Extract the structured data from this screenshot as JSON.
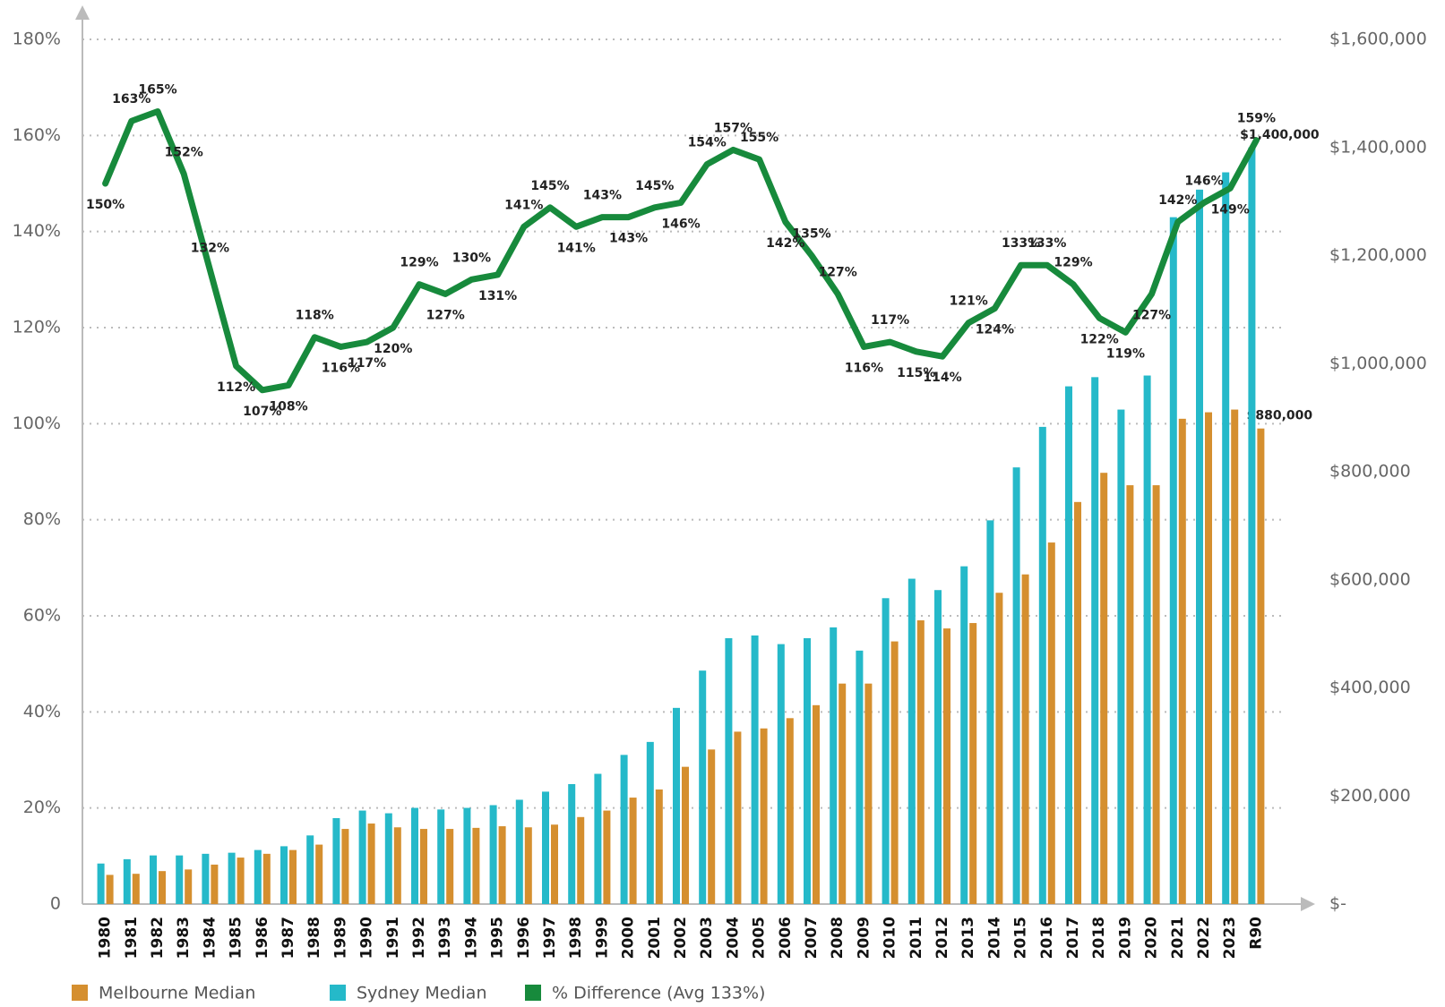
{
  "chart_data": {
    "type": "bar",
    "categories": [
      "1980",
      "1981",
      "1982",
      "1983",
      "1984",
      "1985",
      "1986",
      "1987",
      "1988",
      "1989",
      "1990",
      "1991",
      "1992",
      "1993",
      "1994",
      "1995",
      "1996",
      "1997",
      "1998",
      "1999",
      "2000",
      "2001",
      "2002",
      "2003",
      "2004",
      "2005",
      "2006",
      "2007",
      "2008",
      "2009",
      "2010",
      "2011",
      "2012",
      "2013",
      "2014",
      "2015",
      "2016",
      "2017",
      "2018",
      "2019",
      "2020",
      "2021",
      "2022",
      "2023",
      "R90"
    ],
    "series": [
      {
        "name": "Melbourne Median",
        "type": "bar",
        "axis": "y2",
        "color": "#d58f2f",
        "values": [
          54000,
          56000,
          61000,
          64000,
          73000,
          86000,
          93000,
          100000,
          110000,
          139000,
          149000,
          142000,
          139000,
          139000,
          141000,
          144000,
          142000,
          147000,
          161000,
          173000,
          197000,
          212000,
          254000,
          286000,
          319000,
          325000,
          344000,
          368000,
          408000,
          408000,
          486000,
          525000,
          510000,
          520000,
          576000,
          610000,
          669000,
          744000,
          798000,
          775000,
          775000,
          898000,
          910000,
          915000,
          880000
        ],
        "value_labels": [
          null,
          null,
          null,
          null,
          null,
          null,
          null,
          null,
          null,
          null,
          null,
          null,
          null,
          null,
          null,
          null,
          null,
          null,
          null,
          null,
          null,
          null,
          null,
          null,
          null,
          null,
          null,
          null,
          null,
          null,
          null,
          null,
          null,
          null,
          null,
          null,
          null,
          null,
          null,
          null,
          null,
          null,
          null,
          null,
          "$880,000"
        ]
      },
      {
        "name": "Sydney Median",
        "type": "bar",
        "axis": "y2",
        "color": "#25b9c9",
        "values": [
          75000,
          83000,
          90000,
          90000,
          93000,
          95000,
          100000,
          107000,
          127000,
          159000,
          173000,
          168000,
          178000,
          175000,
          178000,
          183000,
          193000,
          208000,
          222000,
          241000,
          276000,
          300000,
          363000,
          432000,
          492000,
          497000,
          481000,
          492000,
          512000,
          469000,
          566000,
          602000,
          581000,
          625000,
          710000,
          808000,
          883000,
          958000,
          975000,
          915000,
          978000,
          1271000,
          1322000,
          1354000,
          1400000
        ],
        "value_labels": [
          null,
          null,
          null,
          null,
          null,
          null,
          null,
          null,
          null,
          null,
          null,
          null,
          null,
          null,
          null,
          null,
          null,
          null,
          null,
          null,
          null,
          null,
          null,
          null,
          null,
          null,
          null,
          null,
          null,
          null,
          null,
          null,
          null,
          null,
          null,
          null,
          null,
          null,
          null,
          null,
          null,
          null,
          null,
          null,
          "$1,400,000"
        ]
      },
      {
        "name": "% Difference (Avg 133%)",
        "type": "line",
        "axis": "y",
        "color": "#178a3c",
        "values": [
          150,
          163,
          165,
          152,
          132,
          112,
          107,
          108,
          118,
          116,
          117,
          120,
          129,
          127,
          130,
          131,
          141,
          145,
          141,
          143,
          143,
          145,
          146,
          154,
          157,
          155,
          142,
          135,
          127,
          116,
          117,
          115,
          114,
          121,
          124,
          133,
          133,
          129,
          122,
          119,
          127,
          142,
          146,
          149,
          159
        ],
        "value_labels": [
          "150%",
          "163%",
          "165%",
          "152%",
          "132%",
          "112%",
          "107%",
          "108%",
          "118%",
          "116%",
          "117%",
          "120%",
          "129%",
          "127%",
          "130%",
          "131%",
          "141%",
          "145%",
          "141%",
          "143%",
          "143%",
          "145%",
          "146%",
          "154%",
          "157%",
          "155%",
          "142%",
          "135%",
          "127%",
          "116%",
          "117%",
          "115%",
          "114%",
          "121%",
          "124%",
          "133%",
          "133%",
          "129%",
          "122%",
          "119%",
          "127%",
          "142%",
          "146%",
          "149%",
          "159%"
        ]
      }
    ],
    "ylim": [
      0,
      180
    ],
    "yticks": [
      0,
      {
        "value": 20,
        "label": "20%"
      },
      {
        "value": 40,
        "label": "40%"
      },
      {
        "value": 60,
        "label": "60%"
      },
      {
        "value": 80,
        "label": "80%"
      },
      {
        "value": 100,
        "label": "100%"
      },
      {
        "value": 120,
        "label": "120%"
      },
      {
        "value": 140,
        "label": "140%"
      },
      {
        "value": 160,
        "label": "160%"
      },
      {
        "value": 180,
        "label": "180%"
      }
    ],
    "y2lim": [
      0,
      1600000
    ],
    "y2ticks": [
      {
        "value": 0,
        "label": "$-"
      },
      {
        "value": 200000,
        "label": "$200,000"
      },
      {
        "value": 400000,
        "label": "$400,000"
      },
      {
        "value": 600000,
        "label": "$600,000"
      },
      {
        "value": 800000,
        "label": "$800,000"
      },
      {
        "value": 1000000,
        "label": "$1,000,000"
      },
      {
        "value": 1200000,
        "label": "$1,200,000"
      },
      {
        "value": 1400000,
        "label": "$1,400,000"
      },
      {
        "value": 1600000,
        "label": "$1,600,000"
      }
    ],
    "grid": true
  }
}
